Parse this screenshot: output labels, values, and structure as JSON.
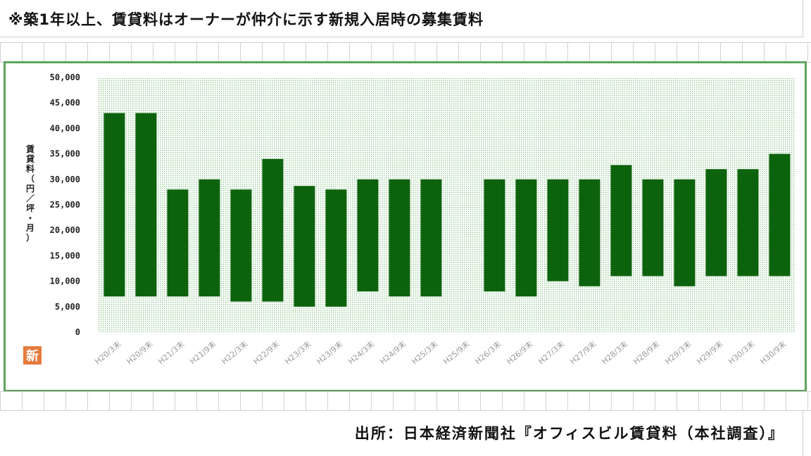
{
  "note": "※築1年以上、賃貸料はオーナーが仲介に示す新規入居時の募集賃料",
  "source": "出所：日本経済新聞社『オフィスビル賃貸料（本社調査）』",
  "badge": "新",
  "colors": {
    "bar": "#0d630d",
    "frame": "#5fa35f",
    "dots": "#8ec88e",
    "badge": "#e57a3c"
  },
  "chart_data": {
    "type": "bar",
    "subtype": "floating-range",
    "ylabel": "賃貸料（円／坪・月）",
    "ylim": [
      0,
      50000
    ],
    "yticks": [
      "0",
      "5,000",
      "10,000",
      "15,000",
      "20,000",
      "25,000",
      "30,000",
      "35,000",
      "40,000",
      "45,000",
      "50,000"
    ],
    "categories": [
      "H20/3末",
      "H20/9末",
      "H21/3末",
      "H21/9末",
      "H22/3末",
      "H22/9末",
      "H23/3末",
      "H23/9末",
      "H24/3末",
      "H24/9末",
      "H25/3末",
      "H25/9末",
      "H26/3末",
      "H26/9末",
      "H27/3末",
      "H27/9末",
      "H28/3末",
      "H28/9末",
      "H29/3末",
      "H29/9末",
      "H30/3末",
      "H30/9末"
    ],
    "low": [
      7000,
      7000,
      7000,
      7000,
      6000,
      6000,
      5000,
      5000,
      8000,
      7000,
      7000,
      null,
      8000,
      7000,
      10000,
      9000,
      11000,
      11000,
      9000,
      11000,
      11000,
      11000
    ],
    "high": [
      43000,
      43000,
      28000,
      30000,
      28000,
      34000,
      28700,
      28000,
      30000,
      30000,
      30000,
      null,
      30000,
      30000,
      30000,
      30000,
      32800,
      30000,
      30000,
      32000,
      32000,
      35000
    ],
    "grid": false,
    "legend": false
  }
}
